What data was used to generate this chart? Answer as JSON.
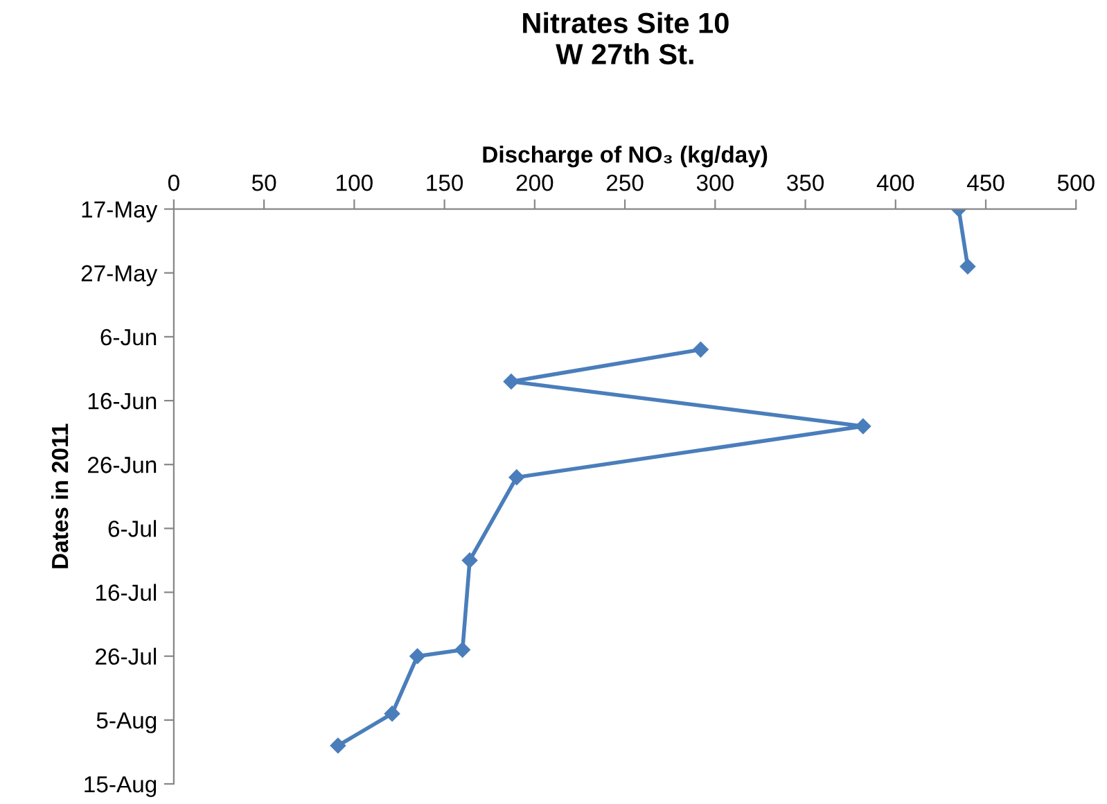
{
  "chart_data": {
    "type": "line",
    "orientation": "horizontal",
    "title": "Nitrates Site 10\nW 27th St.",
    "xlabel": "Discharge of NO₃ (kg/day)",
    "ylabel": "Dates in 2011",
    "series": [
      {
        "color": "#4a7ebb",
        "x": [
          "2011-05-17",
          "2011-05-26",
          "2011-06-01",
          "2011-06-08",
          "2011-06-13",
          "2011-06-20",
          "2011-06-28",
          "2011-07-11",
          "2011-07-25",
          "2011-07-26",
          "2011-08-04",
          "2011-08-09"
        ],
        "values": [
          435,
          440,
          null,
          292,
          187,
          382,
          190,
          164,
          160,
          135,
          121,
          91
        ]
      }
    ],
    "xlim": [
      0,
      500
    ],
    "xticks": [
      0,
      50,
      100,
      150,
      200,
      250,
      300,
      350,
      400,
      450,
      500
    ],
    "ylim": [
      "2011-08-15",
      "2011-05-17"
    ],
    "yticks": [
      {
        "value": "2011-05-17",
        "label": "17-May"
      },
      {
        "value": "2011-05-27",
        "label": "27-May"
      },
      {
        "value": "2011-06-06",
        "label": "6-Jun"
      },
      {
        "value": "2011-06-16",
        "label": "16-Jun"
      },
      {
        "value": "2011-06-26",
        "label": "26-Jun"
      },
      {
        "value": "2011-07-06",
        "label": "6-Jul"
      },
      {
        "value": "2011-07-16",
        "label": "16-Jul"
      },
      {
        "value": "2011-07-26",
        "label": "26-Jul"
      },
      {
        "value": "2011-08-05",
        "label": "5-Aug"
      },
      {
        "value": "2011-08-15",
        "label": "15-Aug"
      }
    ],
    "marker": "diamond",
    "line_style": "solid",
    "grid": false,
    "legend": false
  }
}
